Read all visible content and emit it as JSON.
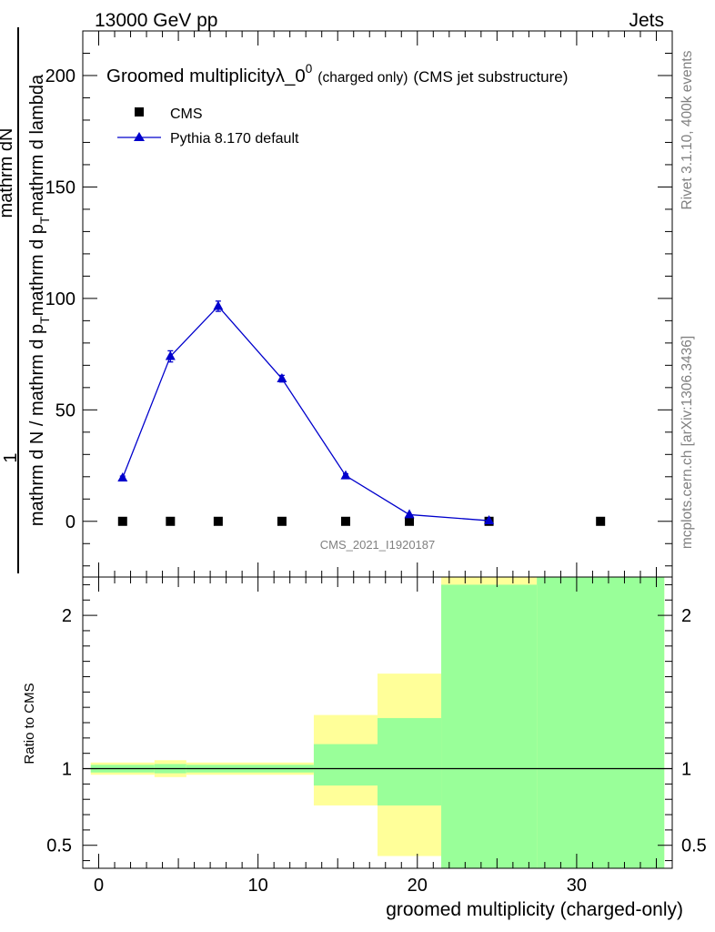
{
  "header": {
    "left": "13000 GeV pp",
    "right": "Jets"
  },
  "side": {
    "rivet": "Rivet 3.1.10,  400k events",
    "mcplots": "mcplots.cern.ch [arXiv:1306.3436]"
  },
  "chart_data": [
    {
      "type": "scatter",
      "title": "Groomed multiplicity",
      "title_symbol": "λ_0",
      "title_sup": "0",
      "title_small": "(charged only)",
      "title_tail": "(CMS jet substructure)",
      "ylabel_top": "1",
      "ylabel_num": "mathrm dN",
      "ylabel_den_1": "mathrm d N / mathrm d p",
      "ylabel_den_2": "mathrm d p",
      "ylabel_den_3": "mathrm d lambda",
      "ylabel_sub": "T",
      "xlim": [
        -1,
        36
      ],
      "ylim": [
        -25,
        220
      ],
      "yticks": [
        0,
        50,
        100,
        150,
        200
      ],
      "watermark": "CMS_2021_I1920187",
      "legend_position": "top-left",
      "series": [
        {
          "name": "CMS",
          "color": "#000000",
          "marker": "square",
          "x": [
            1.5,
            4.5,
            7.5,
            11.5,
            15.5,
            19.5,
            24.5,
            31.5
          ],
          "y": [
            0,
            0,
            0,
            0,
            0,
            0,
            0,
            0
          ]
        },
        {
          "name": "Pythia 8.170 default",
          "color": "#0000cc",
          "marker": "triangle",
          "x": [
            1.5,
            4.5,
            7.5,
            11.5,
            15.5,
            19.5,
            24.5
          ],
          "y": [
            19.5,
            74,
            96.5,
            64,
            20.5,
            3,
            0.3
          ],
          "yerr": [
            0.8,
            2.5,
            2.3,
            1.5,
            0.8,
            0.3,
            0.1
          ]
        }
      ]
    },
    {
      "type": "bar",
      "ylabel": "Ratio to CMS",
      "xlabel": "groomed multiplicity (charged-only)",
      "xlim": [
        -1,
        36
      ],
      "ylim": [
        0.35,
        2.25
      ],
      "xticks": [
        0,
        10,
        20,
        30
      ],
      "yticks": [
        0.5,
        1,
        2
      ],
      "reference": 1,
      "colors": {
        "band_outer": "#ffff99",
        "band_inner": "#99ff99"
      },
      "bins": [
        {
          "x0": -0.5,
          "x1": 3.5,
          "outer": [
            0.96,
            1.04
          ],
          "inner": [
            0.975,
            1.025
          ]
        },
        {
          "x0": 3.5,
          "x1": 5.5,
          "outer": [
            0.945,
            1.055
          ],
          "inner": [
            0.97,
            1.03
          ]
        },
        {
          "x0": 5.5,
          "x1": 13.5,
          "outer": [
            0.96,
            1.04
          ],
          "inner": [
            0.975,
            1.025
          ]
        },
        {
          "x0": 13.5,
          "x1": 17.5,
          "outer": [
            0.76,
            1.35
          ],
          "inner": [
            0.89,
            1.16
          ]
        },
        {
          "x0": 17.5,
          "x1": 21.5,
          "outer": [
            0.43,
            1.62
          ],
          "inner": [
            0.76,
            1.33
          ]
        },
        {
          "x0": 21.5,
          "x1": 27.5,
          "outer": [
            0.35,
            2.3
          ],
          "inner": [
            0.35,
            2.2
          ]
        },
        {
          "x0": 27.5,
          "x1": 35.5,
          "outer": [
            0.35,
            2.3
          ],
          "inner": [
            0.35,
            2.3
          ]
        }
      ]
    }
  ]
}
